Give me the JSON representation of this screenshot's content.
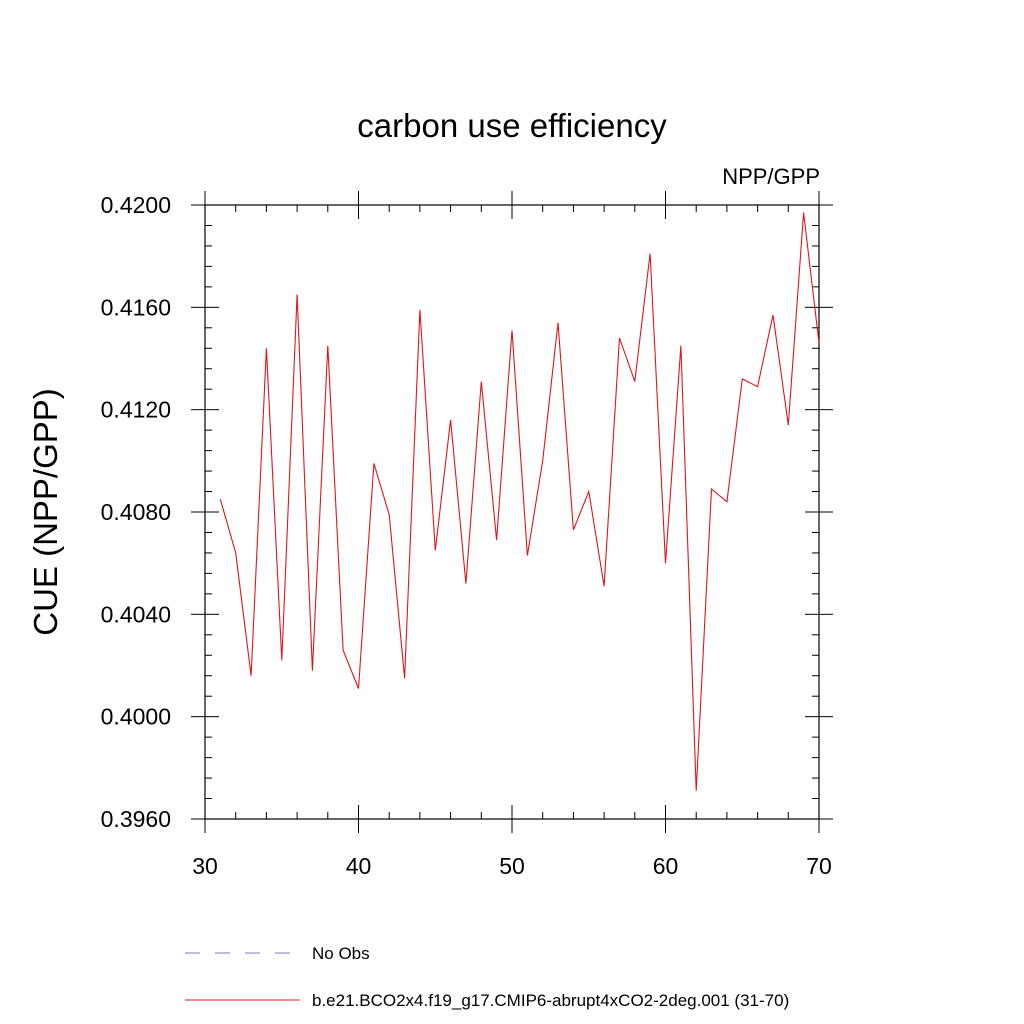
{
  "chart_data": {
    "type": "line",
    "title": "carbon use efficiency",
    "subtitle": "NPP/GPP",
    "xlabel": "",
    "ylabel": "CUE  (NPP/GPP)",
    "xlim": [
      30,
      70
    ],
    "ylim": [
      0.396,
      0.42
    ],
    "x_ticks": [
      "30",
      "40",
      "50",
      "60",
      "70"
    ],
    "y_ticks": [
      "0.3960",
      "0.4000",
      "0.4040",
      "0.4080",
      "0.4120",
      "0.4160",
      "0.4200"
    ],
    "grid": false,
    "legend_position": "bottom",
    "series": [
      {
        "name": "No Obs",
        "style": "dashed",
        "color": "#7b7bc8",
        "x": [],
        "y": []
      },
      {
        "name": "b.e21.BCO2x4.f19_g17.CMIP6-abrupt4xCO2-2deg.001 (31-70)",
        "style": "solid",
        "color": "#e0141e",
        "x": [
          31,
          32,
          33,
          34,
          35,
          36,
          37,
          38,
          39,
          40,
          41,
          42,
          43,
          44,
          45,
          46,
          47,
          48,
          49,
          50,
          51,
          52,
          53,
          54,
          55,
          56,
          57,
          58,
          59,
          60,
          61,
          62,
          63,
          64,
          65,
          66,
          67,
          68,
          69,
          70
        ],
        "y": [
          0.4085,
          0.4064,
          0.4016,
          0.4144,
          0.4022,
          0.4165,
          0.4018,
          0.4145,
          0.4026,
          0.4011,
          0.4099,
          0.4079,
          0.4015,
          0.4159,
          0.4065,
          0.4116,
          0.4052,
          0.4131,
          0.4069,
          0.4151,
          0.4063,
          0.41,
          0.4154,
          0.4073,
          0.4088,
          0.4051,
          0.4148,
          0.4131,
          0.4181,
          0.406,
          0.4145,
          0.3971,
          0.4089,
          0.4084,
          0.4132,
          0.4129,
          0.4157,
          0.4114,
          0.4197,
          0.4146
        ]
      }
    ]
  }
}
